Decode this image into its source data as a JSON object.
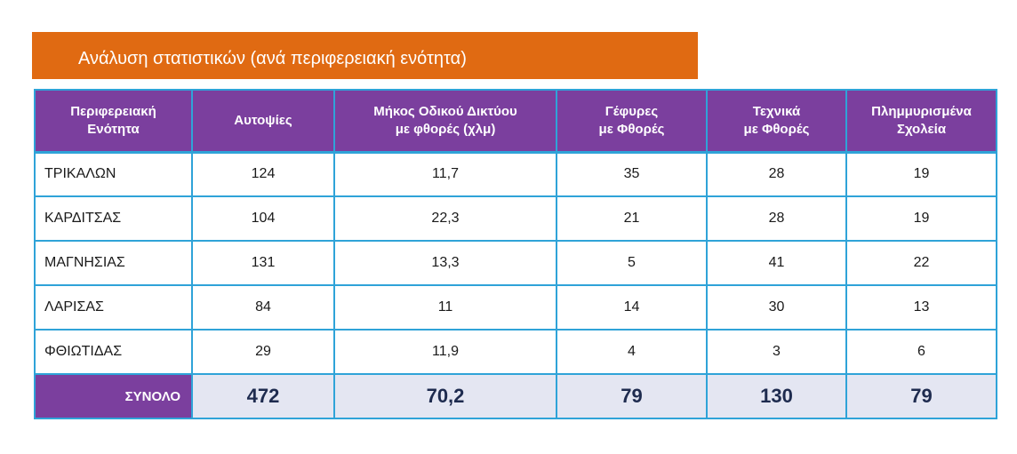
{
  "title": "Ανάλυση στατιστικών (ανά περιφερειακή ενότητα)",
  "colors": {
    "banner": "#E06A12",
    "header": "#7B3F9E",
    "border": "#2FA3D8",
    "total_row": "#E4E6F2"
  },
  "table": {
    "headers": [
      {
        "line1": "Περιφερειακή",
        "line2": "Ενότητα"
      },
      {
        "line1": "Αυτοψίες",
        "line2": ""
      },
      {
        "line1": "Μήκος Οδικού Δικτύου",
        "line2": "με φθορές (χλμ)"
      },
      {
        "line1": "Γέφυρες",
        "line2": "με Φθορές"
      },
      {
        "line1": "Τεχνικά",
        "line2": "με Φθορές"
      },
      {
        "line1": "Πλημμυρισμένα",
        "line2": "Σχολεία"
      }
    ],
    "rows": [
      [
        "ΤΡΙΚΑΛΩΝ",
        "124",
        "11,7",
        "35",
        "28",
        "19"
      ],
      [
        "ΚΑΡΔΙΤΣΑΣ",
        "104",
        "22,3",
        "21",
        "28",
        "19"
      ],
      [
        "ΜΑΓΝΗΣΙΑΣ",
        "131",
        "13,3",
        "5",
        "41",
        "22"
      ],
      [
        "ΛΑΡΙΣΑΣ",
        "84",
        "11",
        "14",
        "30",
        "13"
      ],
      [
        "ΦΘΙΩΤΙΔΑΣ",
        "29",
        "11,9",
        "4",
        "3",
        "6"
      ]
    ],
    "total": [
      "ΣΥΝΟΛΟ",
      "472",
      "70,2",
      "79",
      "130",
      "79"
    ]
  }
}
